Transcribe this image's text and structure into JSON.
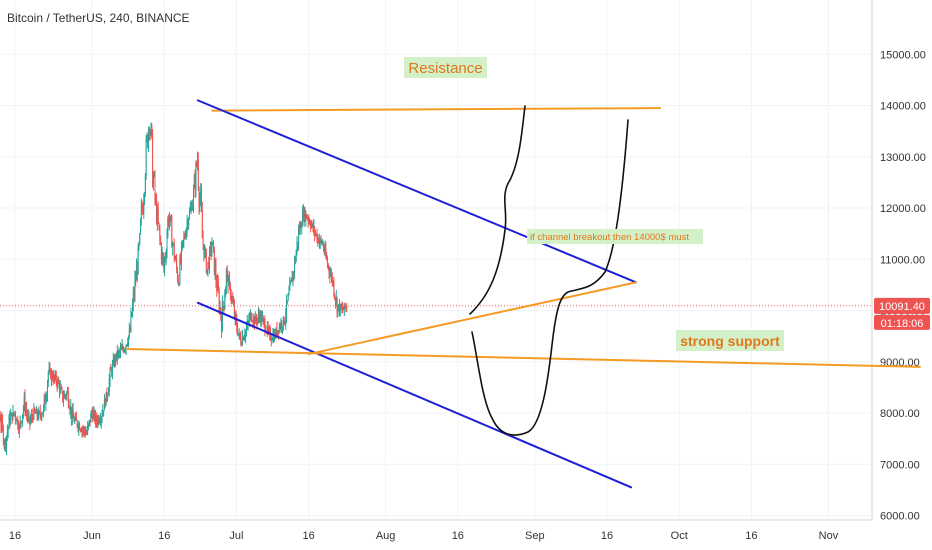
{
  "header": {
    "title": "Bitcoin / TetherUS, 240, BINANCE"
  },
  "colors": {
    "up": "#26a69a",
    "down": "#ef5350",
    "resistance": "#f59a23",
    "channel": "#1f1fd6",
    "hand_drawn": "#111111",
    "label_bg": "#d4f0c8",
    "label_text": "#e0791b",
    "price_line": "#ef5350",
    "price_badge": "#ef5350"
  },
  "chart_data": {
    "type": "candlestick",
    "title": "Bitcoin / TetherUS, 240, BINANCE",
    "x_tick_labels": [
      "16",
      "Jun",
      "16",
      "Jul",
      "16",
      "Aug",
      "16",
      "Sep",
      "16",
      "Oct",
      "16",
      "Nov"
    ],
    "y_tick_labels": [
      "6000.00",
      "7000.00",
      "8000.00",
      "9000.00",
      "10000.00",
      "11000.00",
      "12000.00",
      "13000.00",
      "14000.00",
      "15000.00"
    ],
    "ylim": [
      5900,
      15900
    ],
    "current_price": {
      "value": 10091.4,
      "label": "10091.40",
      "countdown": "01:18:06"
    },
    "price_path_daily": {
      "start_date": "2019-05-10",
      "closes": [
        6300,
        7100,
        8100,
        7900,
        7400,
        7900,
        8000,
        7700,
        8200,
        7800,
        8000,
        7950,
        8050,
        8800,
        8700,
        8600,
        8300,
        8400,
        7900,
        7800,
        7700,
        7600,
        8000,
        7850,
        7950,
        8300,
        8800,
        9100,
        9200,
        9300,
        9600,
        10500,
        11300,
        12700,
        13800,
        12300,
        11500,
        10800,
        11900,
        11200,
        10600,
        11300,
        11800,
        12100,
        13000,
        11400,
        10800,
        11300,
        10500,
        9800,
        10700,
        10300,
        9700,
        9400,
        9600,
        9900,
        9800,
        9900,
        9700,
        9500,
        9500,
        9700,
        9800,
        10300,
        10800,
        11500,
        11900,
        11800,
        11600,
        11400,
        11300,
        10900,
        10600,
        10100,
        10000,
        10091
      ]
    },
    "annotations": [
      {
        "kind": "text",
        "text": "Resistance",
        "position": [
          0.49,
          0.12
        ]
      },
      {
        "kind": "text",
        "text": "strong support",
        "position": [
          0.76,
          0.62
        ]
      },
      {
        "kind": "text",
        "text": "if channel breakout then 14000$ must",
        "position": [
          0.65,
          0.43
        ]
      }
    ],
    "drawings": [
      {
        "name": "resistance",
        "kind": "trendline",
        "color": "#f59a23",
        "points": [
          [
            "2019-06-26",
            13900
          ],
          [
            "2019-09-27",
            13950
          ]
        ]
      },
      {
        "name": "channel-upper",
        "kind": "trendline",
        "color": "#1f1fd6",
        "points": [
          [
            "2019-06-23",
            14100
          ],
          [
            "2019-09-22",
            10550
          ]
        ]
      },
      {
        "name": "channel-lower",
        "kind": "trendline",
        "color": "#1f1fd6",
        "points": [
          [
            "2019-06-23",
            10150
          ],
          [
            "2019-09-21",
            6550
          ]
        ]
      },
      {
        "name": "strong-support",
        "kind": "trendline",
        "color": "#f59a23",
        "points": [
          [
            "2019-06-08",
            9250
          ],
          [
            "2019-11-20",
            8900
          ]
        ]
      },
      {
        "name": "rising-support",
        "kind": "trendline",
        "color": "#f59a23",
        "points": [
          [
            "2019-07-16",
            9150
          ],
          [
            "2019-09-22",
            10550
          ]
        ]
      }
    ]
  }
}
